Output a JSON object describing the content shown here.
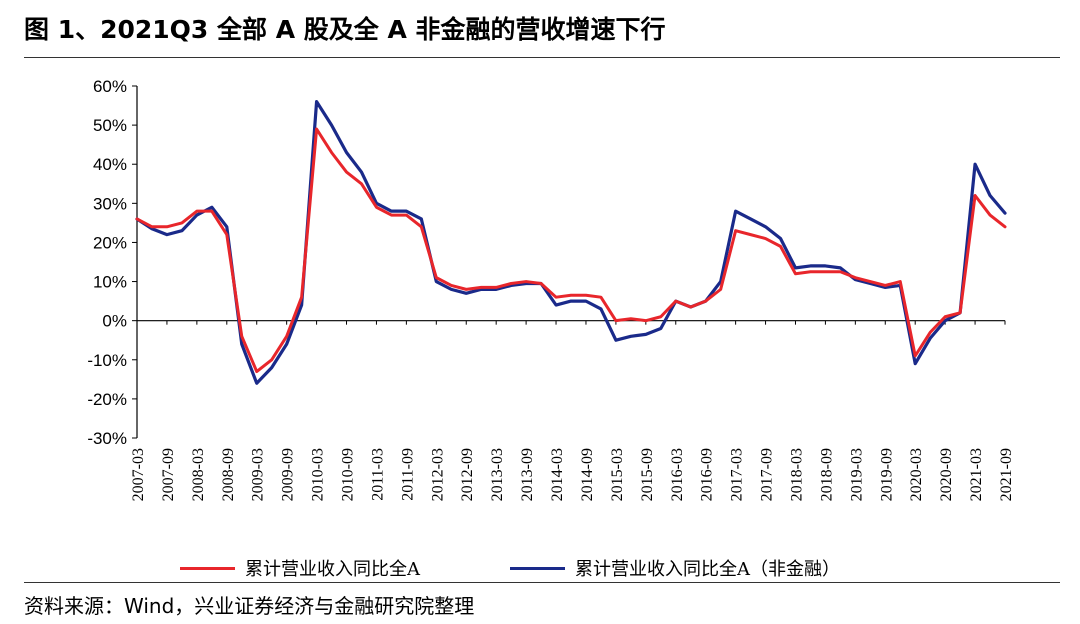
{
  "title": "图 1、2021Q3 全部 A 股及全 A 非金融的营收增速下行",
  "source": "资料来源：Wind，兴业证券经济与金融研究院整理",
  "colors": {
    "series_red": "#e8262b",
    "series_blue": "#1a2a8a",
    "axis": "#000000"
  },
  "chart_data": {
    "type": "line",
    "title": "",
    "xlabel": "",
    "ylabel": "",
    "ylim": [
      -30,
      60
    ],
    "yticks": [
      60,
      50,
      40,
      30,
      20,
      10,
      0,
      -10,
      -20,
      -30
    ],
    "ytick_labels": [
      "60%",
      "50%",
      "40%",
      "30%",
      "20%",
      "10%",
      "0%",
      "-10%",
      "-20%",
      "-30%"
    ],
    "xtick_labels": [
      "2007-03",
      "2007-09",
      "2008-03",
      "2008-09",
      "2009-03",
      "2009-09",
      "2010-03",
      "2010-09",
      "2011-03",
      "2011-09",
      "2012-03",
      "2012-09",
      "2013-03",
      "2013-09",
      "2014-03",
      "2014-09",
      "2015-03",
      "2015-09",
      "2016-03",
      "2016-09",
      "2017-03",
      "2017-09",
      "2018-03",
      "2018-09",
      "2019-03",
      "2019-09",
      "2020-03",
      "2020-09",
      "2021-03",
      "2021-09"
    ],
    "x": [
      "2007-03",
      "2007-06",
      "2007-09",
      "2007-12",
      "2008-03",
      "2008-06",
      "2008-09",
      "2008-12",
      "2009-03",
      "2009-06",
      "2009-09",
      "2009-12",
      "2010-03",
      "2010-06",
      "2010-09",
      "2010-12",
      "2011-03",
      "2011-06",
      "2011-09",
      "2011-12",
      "2012-03",
      "2012-06",
      "2012-09",
      "2012-12",
      "2013-03",
      "2013-06",
      "2013-09",
      "2013-12",
      "2014-03",
      "2014-06",
      "2014-09",
      "2014-12",
      "2015-03",
      "2015-06",
      "2015-09",
      "2015-12",
      "2016-03",
      "2016-06",
      "2016-09",
      "2016-12",
      "2017-03",
      "2017-06",
      "2017-09",
      "2017-12",
      "2018-03",
      "2018-06",
      "2018-09",
      "2018-12",
      "2019-03",
      "2019-06",
      "2019-09",
      "2019-12",
      "2020-03",
      "2020-06",
      "2020-09",
      "2020-12",
      "2021-03",
      "2021-06",
      "2021-09"
    ],
    "series": [
      {
        "name": "累计营业收入同比全A",
        "color": "#e8262b",
        "values": [
          26,
          24,
          24,
          25,
          28,
          28,
          22,
          -4,
          -13,
          -10,
          -4,
          6,
          49,
          43,
          38,
          35,
          29,
          27,
          27,
          24,
          11,
          9,
          8,
          8.5,
          8.5,
          9.5,
          10,
          9.5,
          6,
          6.5,
          6.5,
          6,
          0,
          0.5,
          0,
          1,
          5,
          3.5,
          5,
          8,
          23,
          22,
          21,
          19,
          12,
          12.5,
          12.5,
          12.5,
          11,
          10,
          9,
          10,
          -9,
          -3,
          1,
          2,
          32,
          27,
          24
        ]
      },
      {
        "name": "累计营业收入同比全A（非金融）",
        "color": "#1a2a8a",
        "values": [
          26,
          23.5,
          22,
          23,
          27,
          29,
          24,
          -6,
          -16,
          -12,
          -6,
          4,
          56,
          50,
          43,
          38,
          30,
          28,
          28,
          26,
          10,
          8,
          7,
          8,
          8,
          9,
          9.5,
          9.5,
          4,
          5,
          5,
          3,
          -5,
          -4,
          -3.5,
          -2,
          5,
          3.5,
          5,
          10,
          28,
          26,
          24,
          21,
          13.5,
          14,
          14,
          13.5,
          10.5,
          9.5,
          8.5,
          9,
          -11,
          -4.5,
          0,
          2,
          40,
          32,
          27.5
        ]
      }
    ],
    "legend": {
      "position": "bottom"
    },
    "grid": false
  }
}
